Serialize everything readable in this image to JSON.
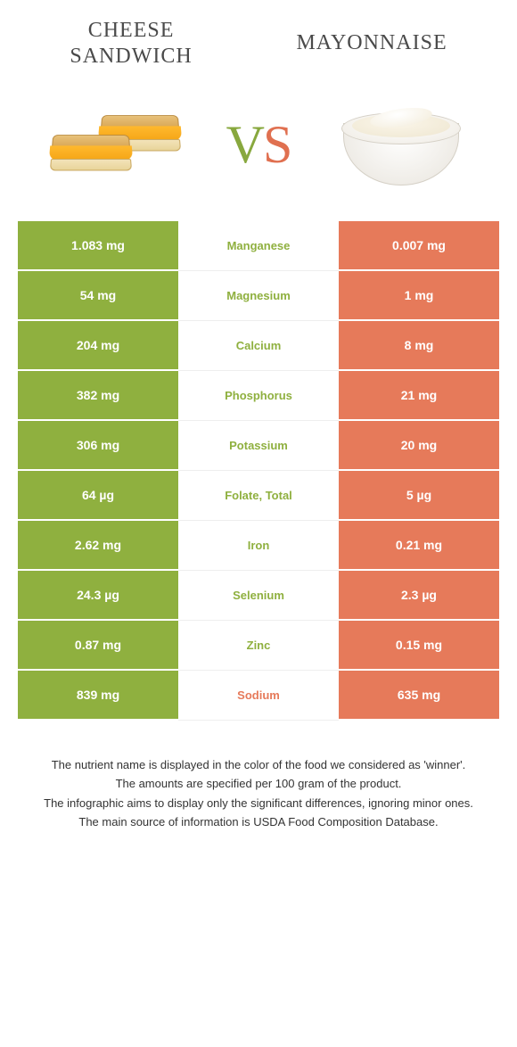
{
  "header": {
    "left_title_line1": "Cheese",
    "left_title_line2": "sandwich",
    "right_title": "Mayonnaise"
  },
  "vs": {
    "v": "V",
    "s": "S"
  },
  "colors": {
    "left": "#8fb03f",
    "right": "#e67a5a",
    "bg": "#ffffff"
  },
  "table": {
    "rows": [
      {
        "nutrient": "Manganese",
        "left": "1.083 mg",
        "right": "0.007 mg",
        "winner": "left"
      },
      {
        "nutrient": "Magnesium",
        "left": "54 mg",
        "right": "1 mg",
        "winner": "left"
      },
      {
        "nutrient": "Calcium",
        "left": "204 mg",
        "right": "8 mg",
        "winner": "left"
      },
      {
        "nutrient": "Phosphorus",
        "left": "382 mg",
        "right": "21 mg",
        "winner": "left"
      },
      {
        "nutrient": "Potassium",
        "left": "306 mg",
        "right": "20 mg",
        "winner": "left"
      },
      {
        "nutrient": "Folate, total",
        "left": "64 µg",
        "right": "5 µg",
        "winner": "left"
      },
      {
        "nutrient": "Iron",
        "left": "2.62 mg",
        "right": "0.21 mg",
        "winner": "left"
      },
      {
        "nutrient": "Selenium",
        "left": "24.3 µg",
        "right": "2.3 µg",
        "winner": "left"
      },
      {
        "nutrient": "Zinc",
        "left": "0.87 mg",
        "right": "0.15 mg",
        "winner": "left"
      },
      {
        "nutrient": "Sodium",
        "left": "839 mg",
        "right": "635 mg",
        "winner": "right"
      }
    ]
  },
  "footnotes": {
    "line1": "The nutrient name is displayed in the color of the food we considered as 'winner'.",
    "line2": "The amounts are specified per 100 gram of the product.",
    "line3": "The infographic aims to display only the significant differences, ignoring minor ones.",
    "line4": "The main source of information is USDA Food Composition Database."
  }
}
